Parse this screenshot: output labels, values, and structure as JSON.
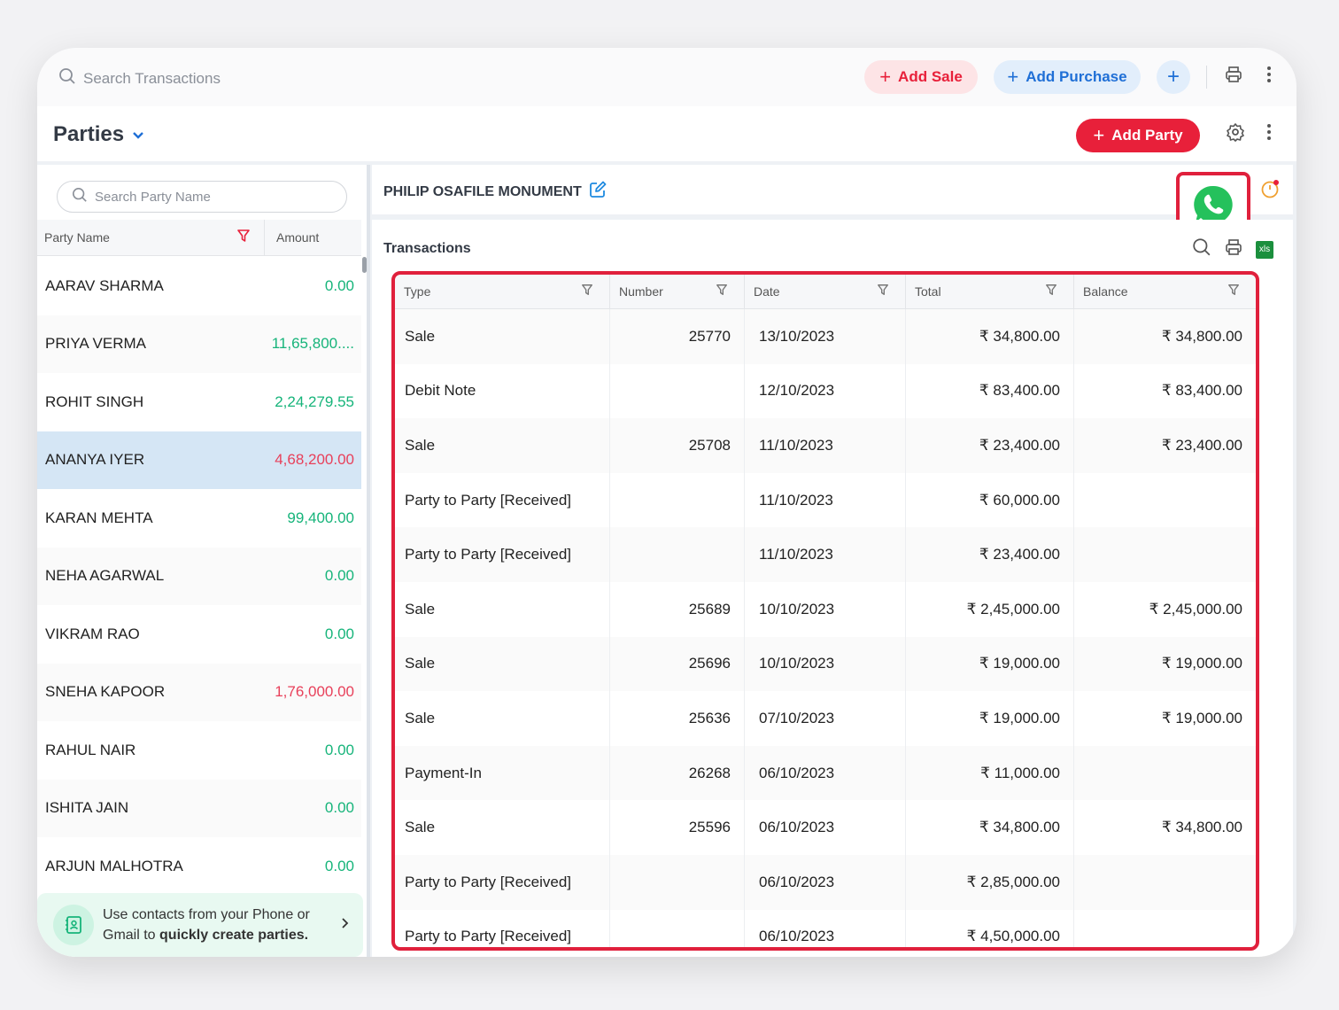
{
  "topbar": {
    "search_placeholder": "Search Transactions",
    "add_sale_label": "Add Sale",
    "add_purchase_label": "Add Purchase"
  },
  "header": {
    "title": "Parties",
    "add_party_label": "Add Party"
  },
  "parties_panel": {
    "search_placeholder": "Search Party Name",
    "col_party_name": "Party Name",
    "col_amount": "Amount",
    "parties": [
      {
        "name": "AARAV SHARMA",
        "amount": "0.00",
        "color": "#16b47a"
      },
      {
        "name": "PRIYA VERMA",
        "amount": "11,65,800....",
        "color": "#16b47a"
      },
      {
        "name": "ROHIT SINGH",
        "amount": "2,24,279.55",
        "color": "#16b47a"
      },
      {
        "name": "ANANYA IYER",
        "amount": "4,68,200.00",
        "color": "#e8405a"
      },
      {
        "name": "KARAN MEHTA",
        "amount": "99,400.00",
        "color": "#16b47a"
      },
      {
        "name": "NEHA AGARWAL",
        "amount": "0.00",
        "color": "#16b47a"
      },
      {
        "name": "VIKRAM RAO",
        "amount": "0.00",
        "color": "#16b47a"
      },
      {
        "name": "SNEHA KAPOOR",
        "amount": "1,76,000.00",
        "color": "#e8405a"
      },
      {
        "name": "RAHUL NAIR",
        "amount": "0.00",
        "color": "#16b47a"
      },
      {
        "name": "ISHITA JAIN",
        "amount": "0.00",
        "color": "#16b47a"
      },
      {
        "name": "ARJUN MALHOTRA",
        "amount": "0.00",
        "color": "#16b47a"
      }
    ],
    "selected_index": 3,
    "tip": {
      "line1": "Use contacts from your Phone or",
      "line2_prefix": "Gmail to ",
      "line2_bold": "quickly create parties."
    }
  },
  "party_detail": {
    "name": "PHILIP OSAFILE MONUMENT"
  },
  "transactions": {
    "title": "Transactions",
    "xls_label": "xls",
    "columns": [
      "Type",
      "Number",
      "Date",
      "Total",
      "Balance"
    ],
    "rows": [
      {
        "type": "Sale",
        "number": "25770",
        "date": "13/10/2023",
        "total": "₹ 34,800.00",
        "balance": "₹ 34,800.00"
      },
      {
        "type": "Debit Note",
        "number": "",
        "date": "12/10/2023",
        "total": "₹ 83,400.00",
        "balance": "₹ 83,400.00"
      },
      {
        "type": "Sale",
        "number": "25708",
        "date": "11/10/2023",
        "total": "₹ 23,400.00",
        "balance": "₹ 23,400.00"
      },
      {
        "type": "Party to Party [Received]",
        "number": "",
        "date": "11/10/2023",
        "total": "₹ 60,000.00",
        "balance": ""
      },
      {
        "type": "Party to Party [Received]",
        "number": "",
        "date": "11/10/2023",
        "total": "₹ 23,400.00",
        "balance": ""
      },
      {
        "type": "Sale",
        "number": "25689",
        "date": "10/10/2023",
        "total": "₹ 2,45,000.00",
        "balance": "₹ 2,45,000.00"
      },
      {
        "type": "Sale",
        "number": "25696",
        "date": "10/10/2023",
        "total": "₹ 19,000.00",
        "balance": "₹ 19,000.00"
      },
      {
        "type": "Sale",
        "number": "25636",
        "date": "07/10/2023",
        "total": "₹ 19,000.00",
        "balance": "₹ 19,000.00"
      },
      {
        "type": "Payment-In",
        "number": "26268",
        "date": "06/10/2023",
        "total": "₹ 11,000.00",
        "balance": ""
      },
      {
        "type": "Sale",
        "number": "25596",
        "date": "06/10/2023",
        "total": "₹ 34,800.00",
        "balance": "₹ 34,800.00"
      },
      {
        "type": "Party to Party [Received]",
        "number": "",
        "date": "06/10/2023",
        "total": "₹ 2,85,000.00",
        "balance": ""
      },
      {
        "type": "Party to Party [Received]",
        "number": "",
        "date": "06/10/2023",
        "total": "₹ 4,50,000.00",
        "balance": ""
      }
    ]
  },
  "colors": {
    "brand_red": "#e8203a",
    "brand_blue": "#1f6fd6",
    "positive_green": "#16b47a",
    "negative_red": "#e8405a",
    "highlight_red": "#e0203c",
    "whatsapp_green": "#25c15c",
    "selected_row": "#d5e6f5"
  },
  "icons": [
    "search-icon",
    "plus-icon",
    "printer-icon",
    "more-vertical-icon",
    "chevron-down-icon",
    "gear-icon",
    "filter-icon",
    "edit-icon",
    "whatsapp-icon",
    "timer-icon",
    "excel-icon",
    "contacts-icon",
    "chevron-right-icon"
  ]
}
